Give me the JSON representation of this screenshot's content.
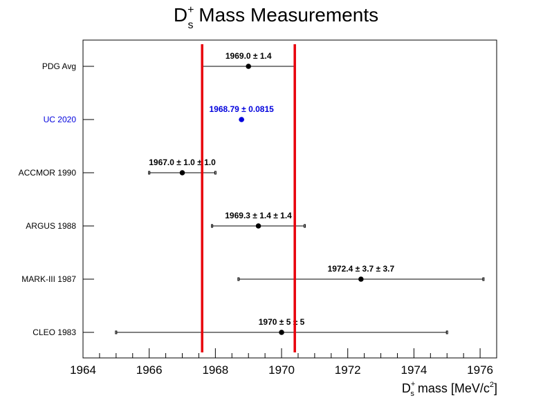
{
  "chart_data": {
    "type": "scatter",
    "title": {
      "base": "D",
      "sup": "+",
      "sub": "s",
      "rest": " Mass Measurements"
    },
    "xlabel": {
      "base": "D",
      "sup": "+",
      "sub": "s",
      "rest": " mass [MeV/c",
      "sup2": "2",
      "end": "]"
    },
    "ylabel": "",
    "xlim": [
      1964,
      1976.5
    ],
    "x_ticks": [
      1964,
      1966,
      1968,
      1970,
      1972,
      1974,
      1976
    ],
    "band": {
      "low": 1967.6,
      "high": 1970.4,
      "color": "#e8000b"
    },
    "points": [
      {
        "name": "PDG Avg",
        "value": 1969.0,
        "err_low": 1.4,
        "err_high": 1.4,
        "syst_caps": false,
        "label": "1969.0 ± 1.4",
        "color": "#000000"
      },
      {
        "name": "UC 2020",
        "value": 1968.79,
        "err_low": 0.0815,
        "err_high": 0.0815,
        "syst_caps": false,
        "label": "1968.79 ± 0.0815",
        "color": "#0000dd"
      },
      {
        "name": "ACCMOR 1990",
        "value": 1967.0,
        "err_low": 1.0,
        "err_high": 1.0,
        "syst_caps": true,
        "label": "1967.0 ± 1.0 ± 1.0",
        "color": "#000000"
      },
      {
        "name": "ARGUS 1988",
        "value": 1969.3,
        "err_low": 1.4,
        "err_high": 1.4,
        "syst_caps": true,
        "label": "1969.3 ± 1.4 ± 1.4",
        "color": "#000000"
      },
      {
        "name": "MARK-III 1987",
        "value": 1972.4,
        "err_low": 3.7,
        "err_high": 3.7,
        "syst_caps": true,
        "label": "1972.4 ± 3.7 ± 3.7",
        "color": "#000000"
      },
      {
        "name": "CLEO 1983",
        "value": 1970.0,
        "err_low": 5.0,
        "err_high": 5.0,
        "syst_caps": true,
        "label": "1970 ± 5 ± 5",
        "color": "#000000"
      }
    ]
  }
}
